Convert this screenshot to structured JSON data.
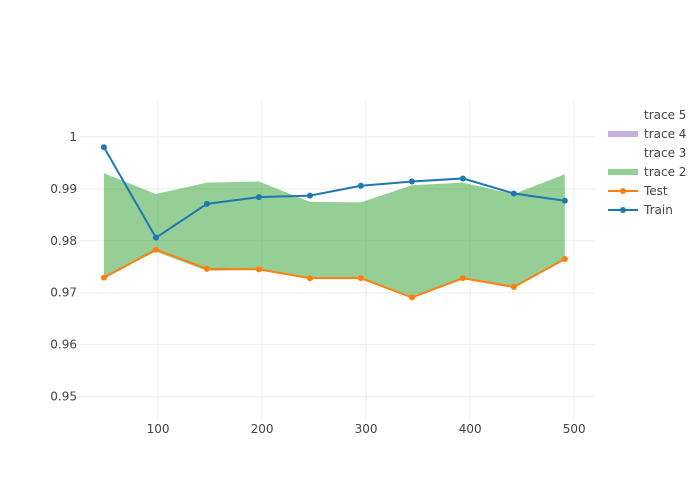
{
  "chart_data": {
    "type": "line",
    "title": "",
    "xlabel": "",
    "ylabel": "",
    "xlim": [
      25,
      520
    ],
    "ylim": [
      0.9455,
      1.0071
    ],
    "x_ticks": [
      100,
      200,
      300,
      400,
      500
    ],
    "y_ticks": [
      0.95,
      0.96,
      0.97,
      0.98,
      0.99,
      1
    ],
    "x_tick_labels": [
      "100",
      "200",
      "300",
      "400",
      "500"
    ],
    "y_tick_labels": [
      "0.95",
      "0.96",
      "0.97",
      "0.98",
      "0.99",
      "1"
    ],
    "grid": true,
    "legend_position": "top-right",
    "x": [
      48,
      98,
      147,
      197,
      246,
      295,
      344,
      393,
      442,
      491
    ],
    "series": [
      {
        "name": "Train",
        "kind": "line+markers",
        "color": "#1f77b4",
        "values": [
          0.998,
          0.9806,
          0.9871,
          0.9884,
          0.9887,
          0.9906,
          0.9914,
          0.992,
          0.9891,
          0.9877
        ]
      },
      {
        "name": "Test",
        "kind": "line+markers",
        "color": "#ff7f0e",
        "values": [
          0.9729,
          0.9783,
          0.9746,
          0.9745,
          0.9728,
          0.9728,
          0.9691,
          0.9728,
          0.9711,
          0.9765
        ]
      },
      {
        "name": "trace 2",
        "kind": "band",
        "color": "#2ca02c",
        "lower": [
          0.9731,
          0.9779,
          0.9742,
          0.9744,
          0.9728,
          0.9728,
          0.9693,
          0.9728,
          0.971,
          0.9766
        ],
        "upper": [
          0.993,
          0.989,
          0.9912,
          0.9914,
          0.9875,
          0.9874,
          0.9907,
          0.9912,
          0.989,
          0.9928
        ]
      },
      {
        "name": "trace 3",
        "kind": "hidden",
        "color": ""
      },
      {
        "name": "trace 4",
        "kind": "band",
        "color": "#9467bd",
        "lower": [],
        "upper": []
      },
      {
        "name": "trace 5",
        "kind": "hidden",
        "color": ""
      }
    ],
    "legend": [
      "trace 5",
      "trace 4",
      "trace 3",
      "trace 2",
      "Test",
      "Train"
    ]
  }
}
